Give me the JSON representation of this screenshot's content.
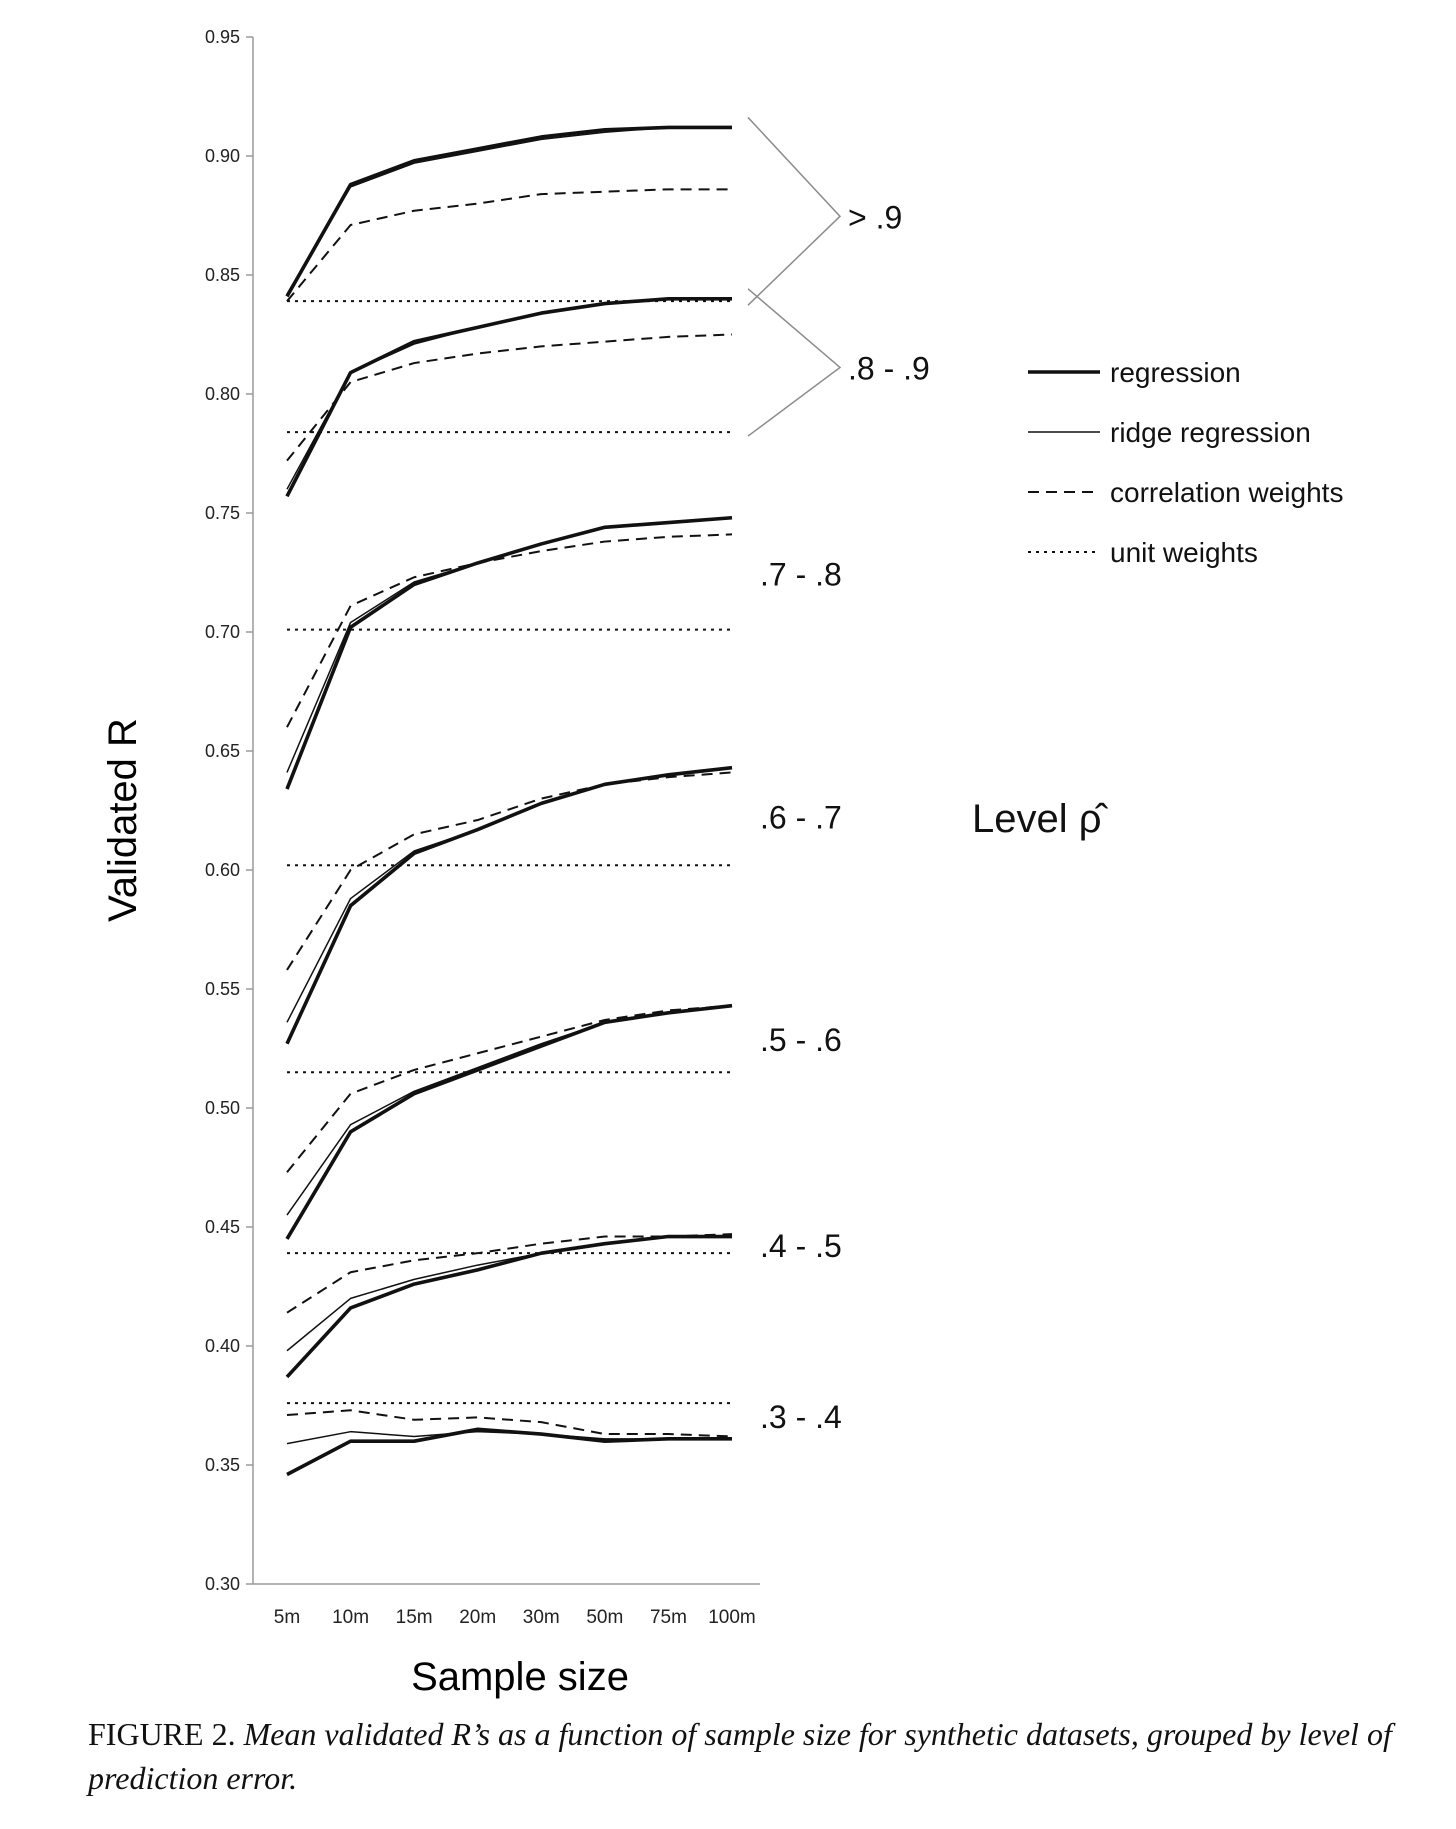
{
  "chart_data": {
    "type": "line",
    "xlabel": "Sample size",
    "ylabel": "Validated R",
    "categories": [
      "5m",
      "10m",
      "15m",
      "20m",
      "30m",
      "50m",
      "75m",
      "100m"
    ],
    "ylim": [
      0.3,
      0.95
    ],
    "yticks": [
      "0.95",
      "0.90",
      "0.85",
      "0.80",
      "0.75",
      "0.70",
      "0.65",
      "0.60",
      "0.55",
      "0.50",
      "0.45",
      "0.40",
      "0.35",
      "0.30"
    ],
    "grid": false,
    "legend_position": "right",
    "legend_title": "Level ρ̂",
    "legend": [
      {
        "key": "regression",
        "label": "regression"
      },
      {
        "key": "ridge",
        "label": "ridge regression"
      },
      {
        "key": "correlation",
        "label": "correlation weights"
      },
      {
        "key": "unit",
        "label": "unit weights"
      }
    ],
    "groups": [
      {
        "label": "> .9",
        "bracket": true,
        "regression": [
          0.841,
          0.888,
          0.898,
          0.903,
          0.908,
          0.911,
          0.912,
          0.912
        ],
        "ridge": [
          0.842,
          0.887,
          0.897,
          0.902,
          0.907,
          0.91,
          0.912,
          0.912
        ],
        "correlation": [
          0.839,
          0.871,
          0.877,
          0.88,
          0.884,
          0.885,
          0.886,
          0.886
        ],
        "unit": 0.839
      },
      {
        "label": ".8 - .9",
        "bracket": true,
        "regression": [
          0.757,
          0.809,
          0.822,
          0.828,
          0.834,
          0.838,
          0.84,
          0.84
        ],
        "ridge": [
          0.76,
          0.809,
          0.821,
          0.828,
          0.834,
          0.838,
          0.84,
          0.84
        ],
        "correlation": [
          0.772,
          0.805,
          0.813,
          0.817,
          0.82,
          0.822,
          0.824,
          0.825
        ],
        "unit": 0.784
      },
      {
        "label": ".7 - .8",
        "bracket": false,
        "regression": [
          0.634,
          0.702,
          0.72,
          0.729,
          0.737,
          0.744,
          0.746,
          0.748
        ],
        "ridge": [
          0.641,
          0.704,
          0.721,
          0.729,
          0.737,
          0.744,
          0.746,
          0.748
        ],
        "correlation": [
          0.66,
          0.711,
          0.723,
          0.729,
          0.734,
          0.738,
          0.74,
          0.741
        ],
        "unit": 0.701
      },
      {
        "label": ".6 - .7",
        "bracket": false,
        "regression": [
          0.527,
          0.585,
          0.607,
          0.617,
          0.628,
          0.636,
          0.64,
          0.643
        ],
        "ridge": [
          0.536,
          0.588,
          0.608,
          0.617,
          0.628,
          0.636,
          0.64,
          0.643
        ],
        "correlation": [
          0.558,
          0.6,
          0.615,
          0.621,
          0.63,
          0.636,
          0.639,
          0.641
        ],
        "unit": 0.602
      },
      {
        "label": ".5 - .6",
        "bracket": false,
        "regression": [
          0.445,
          0.49,
          0.506,
          0.516,
          0.526,
          0.536,
          0.54,
          0.543
        ],
        "ridge": [
          0.455,
          0.493,
          0.507,
          0.517,
          0.527,
          0.536,
          0.54,
          0.543
        ],
        "correlation": [
          0.473,
          0.506,
          0.516,
          0.523,
          0.53,
          0.537,
          0.541,
          0.543
        ],
        "unit": 0.515
      },
      {
        "label": ".4 - .5",
        "bracket": false,
        "regression": [
          0.387,
          0.416,
          0.426,
          0.432,
          0.439,
          0.443,
          0.446,
          0.446
        ],
        "ridge": [
          0.398,
          0.42,
          0.428,
          0.434,
          0.439,
          0.443,
          0.446,
          0.446
        ],
        "correlation": [
          0.414,
          0.431,
          0.436,
          0.439,
          0.443,
          0.446,
          0.446,
          0.447
        ],
        "unit": 0.439
      },
      {
        "label": ".3 - .4",
        "bracket": false,
        "regression": [
          0.346,
          0.36,
          0.36,
          0.365,
          0.363,
          0.36,
          0.361,
          0.361
        ],
        "ridge": [
          0.359,
          0.364,
          0.362,
          0.364,
          0.363,
          0.361,
          0.361,
          0.361
        ],
        "correlation": [
          0.371,
          0.373,
          0.369,
          0.37,
          0.368,
          0.363,
          0.363,
          0.362
        ],
        "unit": 0.376
      }
    ],
    "styles": {
      "regression": {
        "stroke": "#111111",
        "width": 3.6,
        "dash": ""
      },
      "ridge": {
        "stroke": "#111111",
        "width": 1.5,
        "dash": ""
      },
      "correlation": {
        "stroke": "#111111",
        "width": 2.0,
        "dash": "11,7"
      },
      "unit": {
        "stroke": "#111111",
        "width": 2.0,
        "dash": "3,5"
      }
    }
  },
  "caption": {
    "prefix": "FIGURE 2.",
    "text": "Mean validated R’s as a function of sample size for synthetic datasets, grouped by level of prediction error."
  }
}
